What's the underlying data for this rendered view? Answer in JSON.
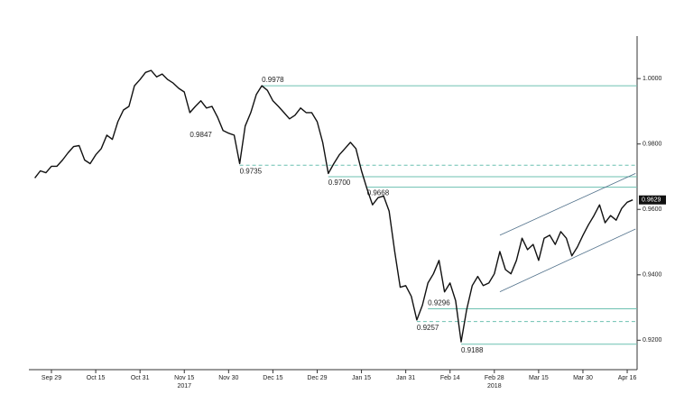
{
  "chart_data": {
    "type": "line",
    "categories": [
      null,
      null,
      null,
      "Sep 29",
      null,
      null,
      null,
      null,
      null,
      null,
      null,
      "Oct 15",
      null,
      null,
      null,
      null,
      null,
      null,
      null,
      "Oct 31",
      null,
      null,
      null,
      null,
      null,
      null,
      null,
      "Nov 15",
      null,
      null,
      null,
      null,
      null,
      null,
      null,
      "Nov 30",
      null,
      null,
      null,
      null,
      null,
      null,
      null,
      "Dec 15",
      null,
      null,
      null,
      null,
      null,
      null,
      null,
      "Dec 29",
      null,
      null,
      null,
      null,
      null,
      null,
      null,
      "Jan 15",
      null,
      null,
      null,
      null,
      null,
      null,
      null,
      "Jan 31",
      null,
      null,
      null,
      null,
      null,
      null,
      null,
      "Feb 14",
      null,
      null,
      null,
      null,
      null,
      null,
      null,
      "Feb 28",
      null,
      null,
      null,
      null,
      null,
      null,
      null,
      "Mar 15",
      null,
      null,
      null,
      null,
      null,
      null,
      null,
      "Mar 30",
      null,
      null,
      null,
      null,
      null,
      null,
      null,
      "Apr 16",
      null
    ],
    "series": [
      {
        "color": "#111111",
        "values": [
          0.9696,
          0.9718,
          0.9712,
          0.9732,
          0.9732,
          0.9751,
          0.9773,
          0.9792,
          0.9795,
          0.9751,
          0.974,
          0.9767,
          0.9786,
          0.9827,
          0.9814,
          0.9868,
          0.9904,
          0.9915,
          0.9978,
          0.9997,
          1.0019,
          1.0025,
          1.0005,
          1.0014,
          0.9997,
          0.9986,
          0.997,
          0.9959,
          0.9896,
          0.9915,
          0.9932,
          0.991,
          0.9915,
          0.9882,
          0.9841,
          0.9833,
          0.9827,
          0.974,
          0.9855,
          0.9896,
          0.9951,
          0.9978,
          0.9964,
          0.9932,
          0.9915,
          0.9896,
          0.9877,
          0.9888,
          0.991,
          0.9896,
          0.9896,
          0.9868,
          0.9805,
          0.971,
          0.974,
          0.9767,
          0.9786,
          0.9805,
          0.9786,
          0.9718,
          0.9663,
          0.9614,
          0.9636,
          0.9641,
          0.9595,
          0.9471,
          0.9362,
          0.9367,
          0.9334,
          0.9262,
          0.9307,
          0.9375,
          0.9403,
          0.9444,
          0.9348,
          0.9375,
          0.9321,
          0.9195,
          0.9293,
          0.9367,
          0.9395,
          0.9367,
          0.9375,
          0.9403,
          0.9471,
          0.9416,
          0.9403,
          0.9444,
          0.9512,
          0.9477,
          0.9493,
          0.9444,
          0.9512,
          0.9521,
          0.9493,
          0.9532,
          0.9512,
          0.9458,
          0.9485,
          0.9521,
          0.9553,
          0.9581,
          0.9614,
          0.9559,
          0.9581,
          0.9567,
          0.9603,
          0.9622,
          0.9629
        ]
      }
    ],
    "ylim": [
      0.911,
      1.013
    ],
    "yticks": [
      {
        "value": 1.0,
        "label": "1.0000"
      },
      {
        "value": 0.98,
        "label": "0.9800"
      },
      {
        "value": 0.96,
        "label": "0.9600"
      },
      {
        "value": 0.94,
        "label": "0.9400"
      },
      {
        "value": 0.92,
        "label": "0.9200"
      }
    ],
    "year_labels": [
      {
        "text": "2017",
        "index": 27
      },
      {
        "text": "2018",
        "index": 83
      }
    ],
    "level_color": "#6cc0b0",
    "channel_color": "#50708a",
    "annotations": [
      {
        "text": "0.9978",
        "value": 0.9978,
        "index": 41,
        "line": "solid"
      },
      {
        "text": "0.9847",
        "value": 0.9847,
        "index": 28
      },
      {
        "text": "0.9735",
        "value": 0.9735,
        "index": 37,
        "line": "dashed"
      },
      {
        "text": "0.9700",
        "value": 0.97,
        "index": 53,
        "line": "solid"
      },
      {
        "text": "0.9668",
        "value": 0.9668,
        "index": 60,
        "line": "solid"
      },
      {
        "text": "0.9296",
        "value": 0.9296,
        "index": 71,
        "line": "solid"
      },
      {
        "text": "0.9257",
        "value": 0.9257,
        "index": 69,
        "line": "dashed"
      },
      {
        "text": "0.9188",
        "value": 0.9188,
        "index": 77,
        "line": "solid"
      }
    ],
    "channel": [
      {
        "from": [
          84,
          0.9521
        ],
        "to": [
          108.5,
          0.971
        ]
      },
      {
        "from": [
          84,
          0.9348
        ],
        "to": [
          108.5,
          0.954
        ]
      }
    ]
  }
}
